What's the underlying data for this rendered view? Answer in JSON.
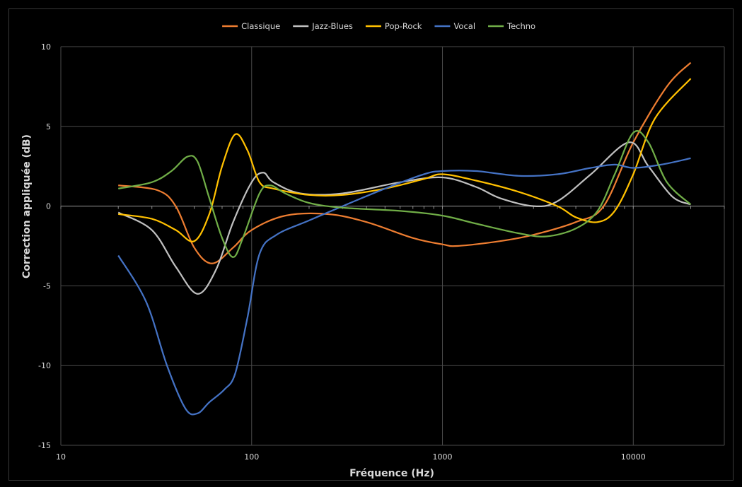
{
  "chart_data": {
    "type": "line",
    "title": "",
    "xlabel": "Fréquence (Hz)",
    "ylabel": "Correction appliquée (dB)",
    "x_scale": "log",
    "xlim": [
      10,
      30000
    ],
    "ylim": [
      -15,
      10
    ],
    "x_ticks": [
      10,
      100,
      1000,
      10000
    ],
    "y_ticks": [
      -15,
      -10,
      -5,
      0,
      5,
      10
    ],
    "grid": true,
    "legend": "top",
    "series": [
      {
        "name": "Classique",
        "color": "#ED7D31",
        "points": [
          [
            20,
            1.3
          ],
          [
            32,
            1.0
          ],
          [
            40,
            0.0
          ],
          [
            50,
            -2.6
          ],
          [
            62,
            -3.6
          ],
          [
            80,
            -2.6
          ],
          [
            100,
            -1.5
          ],
          [
            150,
            -0.6
          ],
          [
            250,
            -0.5
          ],
          [
            400,
            -1.0
          ],
          [
            700,
            -2.0
          ],
          [
            1000,
            -2.4
          ],
          [
            1200,
            -2.5
          ],
          [
            2000,
            -2.2
          ],
          [
            3000,
            -1.8
          ],
          [
            5000,
            -1.0
          ],
          [
            7000,
            0.0
          ],
          [
            10000,
            4.0
          ],
          [
            15000,
            7.5
          ],
          [
            20000,
            9.0
          ]
        ]
      },
      {
        "name": "Jazz-Blues",
        "color": "#BFBFBF",
        "points": [
          [
            20,
            -0.4
          ],
          [
            30,
            -1.5
          ],
          [
            40,
            -3.8
          ],
          [
            52,
            -5.5
          ],
          [
            65,
            -4.0
          ],
          [
            80,
            -1.0
          ],
          [
            100,
            1.5
          ],
          [
            115,
            2.1
          ],
          [
            130,
            1.5
          ],
          [
            180,
            0.8
          ],
          [
            300,
            0.8
          ],
          [
            600,
            1.5
          ],
          [
            1000,
            1.8
          ],
          [
            1500,
            1.2
          ],
          [
            2000,
            0.5
          ],
          [
            3000,
            0.0
          ],
          [
            4000,
            0.3
          ],
          [
            6000,
            2.0
          ],
          [
            9500,
            4.0
          ],
          [
            12000,
            2.5
          ],
          [
            16000,
            0.6
          ],
          [
            20000,
            0.1
          ]
        ]
      },
      {
        "name": "Pop-Rock",
        "color": "#FFC000",
        "points": [
          [
            20,
            -0.5
          ],
          [
            30,
            -0.8
          ],
          [
            40,
            -1.5
          ],
          [
            50,
            -2.2
          ],
          [
            60,
            -0.5
          ],
          [
            70,
            2.5
          ],
          [
            82,
            4.5
          ],
          [
            95,
            3.5
          ],
          [
            110,
            1.5
          ],
          [
            130,
            1.1
          ],
          [
            200,
            0.7
          ],
          [
            300,
            0.7
          ],
          [
            500,
            1.1
          ],
          [
            800,
            1.7
          ],
          [
            1000,
            2.0
          ],
          [
            1500,
            1.6
          ],
          [
            2500,
            0.9
          ],
          [
            4000,
            0.0
          ],
          [
            5000,
            -0.7
          ],
          [
            6500,
            -1.0
          ],
          [
            8000,
            -0.3
          ],
          [
            10000,
            2.0
          ],
          [
            13000,
            5.5
          ],
          [
            20000,
            8.0
          ]
        ]
      },
      {
        "name": "Vocal",
        "color": "#4472C4",
        "points": [
          [
            20,
            -3.1
          ],
          [
            28,
            -6.0
          ],
          [
            36,
            -10.0
          ],
          [
            45,
            -12.7
          ],
          [
            52,
            -13.0
          ],
          [
            60,
            -12.3
          ],
          [
            72,
            -11.5
          ],
          [
            82,
            -10.5
          ],
          [
            95,
            -7.0
          ],
          [
            110,
            -3.0
          ],
          [
            135,
            -1.8
          ],
          [
            200,
            -0.9
          ],
          [
            300,
            0.0
          ],
          [
            500,
            1.1
          ],
          [
            800,
            2.0
          ],
          [
            1000,
            2.2
          ],
          [
            1500,
            2.2
          ],
          [
            2500,
            1.9
          ],
          [
            4000,
            2.0
          ],
          [
            6000,
            2.4
          ],
          [
            8000,
            2.6
          ],
          [
            10000,
            2.4
          ],
          [
            14000,
            2.6
          ],
          [
            20000,
            3.0
          ]
        ]
      },
      {
        "name": "Techno",
        "color": "#70AD47",
        "points": [
          [
            20,
            1.1
          ],
          [
            30,
            1.5
          ],
          [
            38,
            2.2
          ],
          [
            46,
            3.1
          ],
          [
            52,
            2.8
          ],
          [
            60,
            0.5
          ],
          [
            70,
            -2.0
          ],
          [
            80,
            -3.2
          ],
          [
            90,
            -2.0
          ],
          [
            110,
            0.8
          ],
          [
            125,
            1.3
          ],
          [
            150,
            0.8
          ],
          [
            200,
            0.2
          ],
          [
            300,
            -0.1
          ],
          [
            600,
            -0.3
          ],
          [
            1000,
            -0.6
          ],
          [
            1500,
            -1.1
          ],
          [
            2500,
            -1.7
          ],
          [
            3500,
            -1.9
          ],
          [
            5000,
            -1.4
          ],
          [
            6500,
            -0.3
          ],
          [
            8000,
            2.0
          ],
          [
            10000,
            4.6
          ],
          [
            12000,
            4.0
          ],
          [
            15000,
            1.5
          ],
          [
            20000,
            0.1
          ]
        ]
      }
    ]
  }
}
